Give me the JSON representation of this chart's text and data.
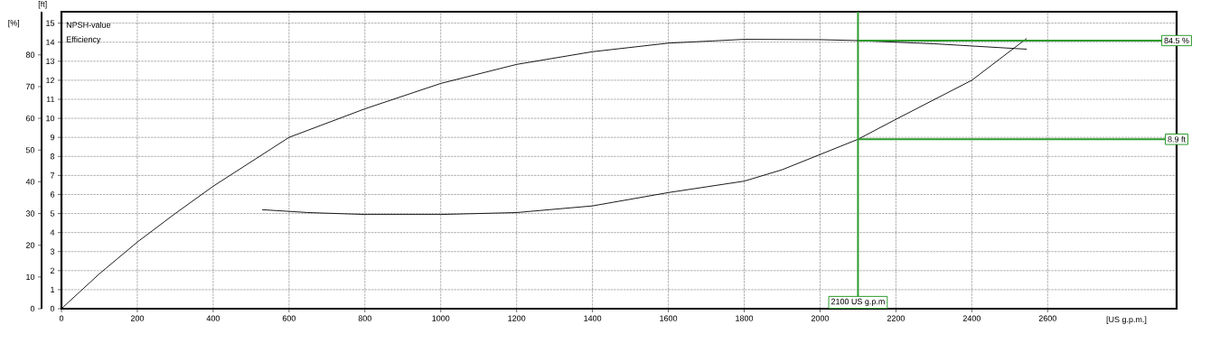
{
  "chart_data": {
    "type": "line",
    "xlabel": "[US g.p.m.]",
    "ylabel": "[%]",
    "y2label": "[ft]",
    "annotations": [
      "NPSH-value",
      "Efficiency"
    ],
    "xlim": [
      0,
      2940
    ],
    "xticks": [
      0,
      200,
      400,
      600,
      800,
      1000,
      1200,
      1400,
      1600,
      1800,
      2000,
      2200,
      2400,
      2600
    ],
    "ylim": [
      0,
      93.6
    ],
    "yticks": [
      0,
      10,
      20,
      30,
      40,
      50,
      60,
      70,
      80
    ],
    "y2lim": [
      0,
      15.6
    ],
    "y2ticks": [
      0,
      1,
      2,
      3,
      4,
      5,
      6,
      7,
      8,
      9,
      10,
      11,
      12,
      13,
      14,
      15
    ],
    "grid": true,
    "marker": "none",
    "line_style": "solid",
    "series": [
      {
        "color": "#000000",
        "x": [
          0,
          100,
          200,
          300,
          400,
          600,
          800,
          1000,
          1200,
          1400,
          1600,
          1800,
          2000,
          2100,
          2300,
          2515,
          2545
        ],
        "values": [
          0,
          11,
          21,
          30,
          38.6,
          54,
          63,
          71,
          77,
          81,
          83.7,
          84.9,
          84.8,
          84.5,
          83.5,
          82,
          81.8
        ]
      },
      {
        "color": "#000000",
        "axis": "y2",
        "x": [
          529,
          650,
          800,
          1000,
          1200,
          1400,
          1600,
          1800,
          1900,
          2000,
          2100,
          2200,
          2400,
          2545
        ],
        "values": [
          5.2,
          5.05,
          4.95,
          4.95,
          5.05,
          5.4,
          6.1,
          6.7,
          7.3,
          8.1,
          8.9,
          9.95,
          12,
          14.2
        ]
      }
    ],
    "ref_lines": [
      {
        "axis": "x",
        "value": 2100,
        "label": "2100 US g.p.m",
        "color": "#2e9b2e"
      },
      {
        "axis": "y",
        "value": 84.5,
        "label": "84.5 %",
        "color": "#2e9b2e"
      },
      {
        "axis": "y2",
        "value": 8.9,
        "label": "8.9 ft",
        "color": "#2e9b2e"
      }
    ]
  }
}
